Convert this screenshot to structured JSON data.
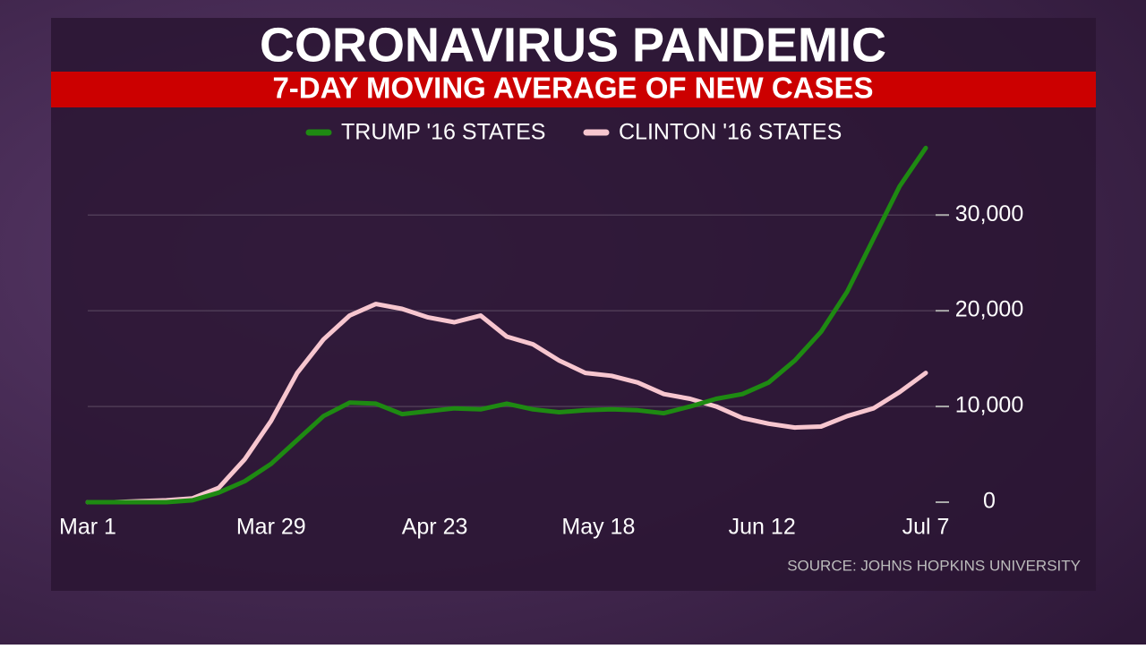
{
  "chart_data": {
    "type": "line",
    "title": "CORONAVIRUS PANDEMIC",
    "subtitle": "7-DAY MOVING AVERAGE OF NEW CASES",
    "source": "SOURCE: JOHNS HOPKINS UNIVERSITY",
    "x": [
      "Mar 1",
      "Mar 5",
      "Mar 9",
      "Mar 13",
      "Mar 17",
      "Mar 21",
      "Mar 25",
      "Mar 29",
      "Apr 2",
      "Apr 6",
      "Apr 10",
      "Apr 14",
      "Apr 18",
      "Apr 22",
      "Apr 26",
      "Apr 30",
      "May 4",
      "May 8",
      "May 12",
      "May 16",
      "May 20",
      "May 24",
      "May 28",
      "Jun 1",
      "Jun 5",
      "Jun 9",
      "Jun 13",
      "Jun 17",
      "Jun 21",
      "Jun 25",
      "Jun 29",
      "Jul 3",
      "Jul 7"
    ],
    "series": [
      {
        "name": "TRUMP '16 STATES",
        "color": "#1e8a12",
        "values": [
          0,
          0,
          0,
          0,
          200,
          1000,
          2200,
          4000,
          6500,
          9000,
          10400,
          10300,
          9200,
          9500,
          9800,
          9700,
          10300,
          9700,
          9400,
          9600,
          9700,
          9600,
          9300,
          10000,
          10800,
          11300,
          12500,
          14800,
          17800,
          22000,
          27500,
          33000,
          37000
        ]
      },
      {
        "name": "CLINTON '16 STATES",
        "color": "#f7c6cf",
        "values": [
          0,
          0,
          100,
          200,
          400,
          1500,
          4500,
          8500,
          13500,
          17000,
          19500,
          20700,
          20200,
          19300,
          18800,
          19500,
          17300,
          16500,
          14800,
          13500,
          13200,
          12500,
          11300,
          10800,
          10000,
          8800,
          8200,
          7800,
          7900,
          9000,
          9800,
          11500,
          13500
        ]
      }
    ],
    "xlim": [
      "Mar 1",
      "Jul 7"
    ],
    "xticks": [
      "Mar 1",
      "Mar 29",
      "Apr 23",
      "May 18",
      "Jun 12",
      "Jul 7"
    ],
    "ylim": [
      0,
      37500
    ],
    "yticks": [
      0,
      {
        "value": 10000,
        "label": "10,000"
      },
      {
        "value": 20000,
        "label": "20,000"
      },
      {
        "value": 30000,
        "label": "30,000"
      }
    ],
    "grid": true,
    "legend": "top"
  }
}
